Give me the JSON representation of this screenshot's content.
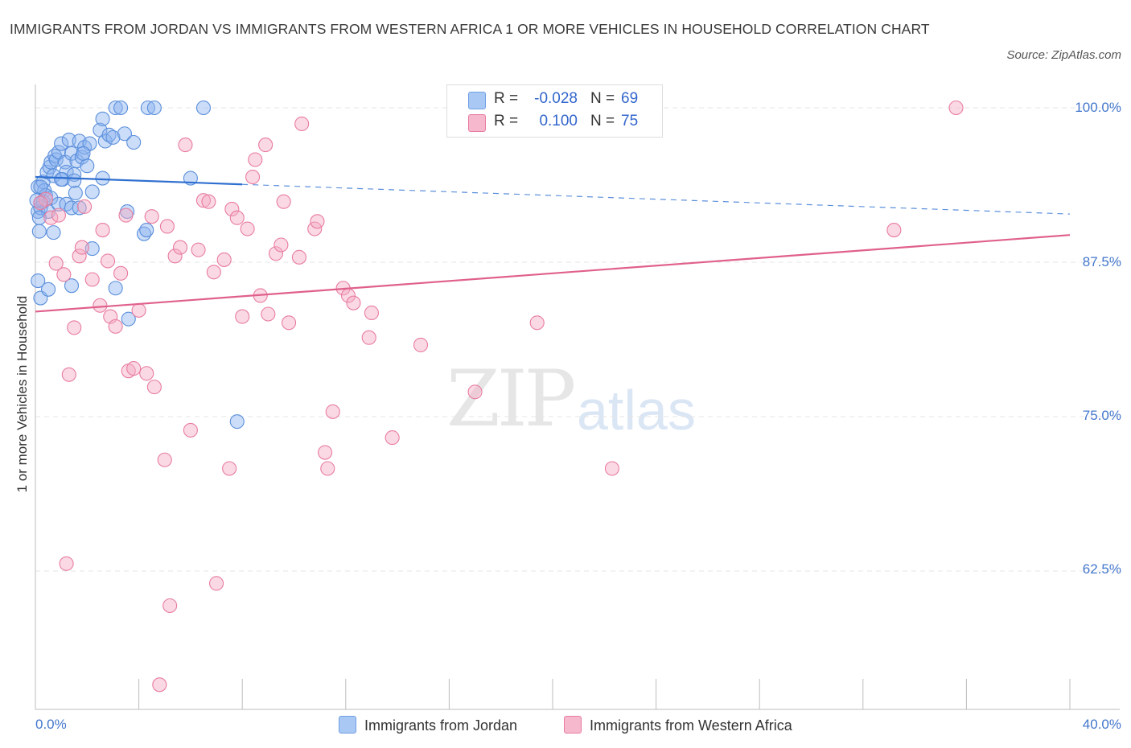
{
  "chart_data": {
    "type": "scatter",
    "title": "IMMIGRANTS FROM JORDAN VS IMMIGRANTS FROM WESTERN AFRICA 1 OR MORE VEHICLES IN HOUSEHOLD CORRELATION CHART",
    "source": "Source: ZipAtlas.com",
    "xlabel": "",
    "ylabel": "1 or more Vehicles in Household",
    "xlim": [
      0,
      40
    ],
    "ylim": [
      52,
      101
    ],
    "x_tick_labels": [
      "0.0%",
      "40.0%"
    ],
    "y_ticks": [
      {
        "value": 100.0,
        "label": "100.0%"
      },
      {
        "value": 87.5,
        "label": "87.5%"
      },
      {
        "value": 75.0,
        "label": "75.0%"
      },
      {
        "value": 62.5,
        "label": "62.5%"
      }
    ],
    "watermark": {
      "zip": "ZIP",
      "atlas": "atlas"
    },
    "legend": {
      "r_label": "R =",
      "n_label": "N =",
      "entries": [
        {
          "name": "Immigrants from Jordan",
          "R": "-0.028",
          "N": "69",
          "color": "#6f9fe6",
          "fill": "#a9c8f3"
        },
        {
          "name": "Immigrants from Western Africa",
          "R": "0.100",
          "N": "75",
          "color": "#e87ca0",
          "fill": "#f6b8cd"
        }
      ]
    },
    "series": [
      {
        "name": "Immigrants from Jordan",
        "color": "#5b8fdb",
        "trend": {
          "x0": 0.0,
          "y0": 94.4,
          "x1": 8.0,
          "y1": 93.8,
          "x_dash_end": 40.0,
          "y_dash_end": 91.4
        },
        "points": [
          [
            0.1,
            93.6
          ],
          [
            0.2,
            92.3
          ],
          [
            0.1,
            91.6
          ],
          [
            0.15,
            90.0
          ],
          [
            0.3,
            94.0
          ],
          [
            0.35,
            93.3
          ],
          [
            0.4,
            92.9
          ],
          [
            0.45,
            94.8
          ],
          [
            0.55,
            95.2
          ],
          [
            0.6,
            95.6
          ],
          [
            0.7,
            94.5
          ],
          [
            0.75,
            96.1
          ],
          [
            0.8,
            95.8
          ],
          [
            0.9,
            96.4
          ],
          [
            1.0,
            97.1
          ],
          [
            1.05,
            94.2
          ],
          [
            1.15,
            95.6
          ],
          [
            1.2,
            94.8
          ],
          [
            1.3,
            97.4
          ],
          [
            1.4,
            96.3
          ],
          [
            1.5,
            94.6
          ],
          [
            1.55,
            93.1
          ],
          [
            1.6,
            95.7
          ],
          [
            1.7,
            97.3
          ],
          [
            1.8,
            96.0
          ],
          [
            1.9,
            96.8
          ],
          [
            2.0,
            95.3
          ],
          [
            2.1,
            97.1
          ],
          [
            2.2,
            93.2
          ],
          [
            2.5,
            98.2
          ],
          [
            2.6,
            99.1
          ],
          [
            2.7,
            97.3
          ],
          [
            2.85,
            97.8
          ],
          [
            3.0,
            97.6
          ],
          [
            3.1,
            100.0
          ],
          [
            3.3,
            100.0
          ],
          [
            3.45,
            97.9
          ],
          [
            3.55,
            91.6
          ],
          [
            3.8,
            97.2
          ],
          [
            4.2,
            89.8
          ],
          [
            4.3,
            90.1
          ],
          [
            4.35,
            100.0
          ],
          [
            4.6,
            100.0
          ],
          [
            6.0,
            94.3
          ],
          [
            6.5,
            100.0
          ],
          [
            0.2,
            91.9
          ],
          [
            0.3,
            92.4
          ],
          [
            0.5,
            91.6
          ],
          [
            0.6,
            92.7
          ],
          [
            0.7,
            89.9
          ],
          [
            0.9,
            92.2
          ],
          [
            1.0,
            94.2
          ],
          [
            1.2,
            92.2
          ],
          [
            1.4,
            91.9
          ],
          [
            1.5,
            94.1
          ],
          [
            1.7,
            91.9
          ],
          [
            1.85,
            96.3
          ],
          [
            2.2,
            88.6
          ],
          [
            2.6,
            94.3
          ],
          [
            3.1,
            85.4
          ],
          [
            3.6,
            82.9
          ],
          [
            7.8,
            74.6
          ],
          [
            0.1,
            86.0
          ],
          [
            0.2,
            84.6
          ],
          [
            0.5,
            85.3
          ],
          [
            1.4,
            85.6
          ],
          [
            0.05,
            92.5
          ],
          [
            0.2,
            93.6
          ],
          [
            0.15,
            91.1
          ]
        ]
      },
      {
        "name": "Immigrants from Western Africa",
        "color": "#e87ca0",
        "trend": {
          "x0": 0.0,
          "y0": 83.5,
          "x1": 40.0,
          "y1": 89.7
        },
        "points": [
          [
            0.4,
            92.6
          ],
          [
            0.6,
            91.1
          ],
          [
            0.8,
            87.4
          ],
          [
            0.9,
            91.3
          ],
          [
            1.1,
            86.5
          ],
          [
            1.3,
            78.4
          ],
          [
            1.5,
            82.2
          ],
          [
            1.7,
            88.0
          ],
          [
            1.8,
            88.7
          ],
          [
            1.9,
            92.0
          ],
          [
            2.2,
            86.1
          ],
          [
            2.5,
            84.0
          ],
          [
            2.6,
            90.1
          ],
          [
            2.8,
            87.6
          ],
          [
            2.9,
            83.1
          ],
          [
            3.1,
            82.3
          ],
          [
            3.3,
            86.6
          ],
          [
            3.5,
            91.3
          ],
          [
            3.6,
            78.7
          ],
          [
            3.8,
            78.9
          ],
          [
            4.0,
            83.6
          ],
          [
            4.3,
            78.5
          ],
          [
            4.5,
            91.2
          ],
          [
            4.6,
            77.4
          ],
          [
            5.0,
            71.5
          ],
          [
            5.1,
            90.4
          ],
          [
            5.4,
            88.0
          ],
          [
            5.6,
            88.7
          ],
          [
            5.8,
            97.0
          ],
          [
            6.0,
            73.9
          ],
          [
            6.3,
            88.5
          ],
          [
            6.5,
            92.5
          ],
          [
            6.7,
            92.4
          ],
          [
            6.9,
            86.7
          ],
          [
            7.0,
            61.5
          ],
          [
            7.3,
            87.7
          ],
          [
            7.5,
            70.8
          ],
          [
            7.6,
            91.8
          ],
          [
            7.8,
            91.1
          ],
          [
            8.0,
            83.1
          ],
          [
            8.2,
            90.2
          ],
          [
            8.4,
            94.4
          ],
          [
            8.5,
            95.8
          ],
          [
            8.7,
            84.8
          ],
          [
            8.9,
            97.0
          ],
          [
            9.0,
            83.3
          ],
          [
            9.3,
            88.2
          ],
          [
            9.5,
            88.9
          ],
          [
            9.6,
            92.4
          ],
          [
            9.8,
            82.6
          ],
          [
            10.2,
            87.9
          ],
          [
            10.3,
            98.7
          ],
          [
            10.8,
            90.2
          ],
          [
            10.9,
            90.8
          ],
          [
            11.2,
            72.1
          ],
          [
            11.3,
            70.8
          ],
          [
            11.5,
            75.4
          ],
          [
            11.9,
            85.4
          ],
          [
            12.1,
            84.8
          ],
          [
            12.3,
            84.2
          ],
          [
            12.9,
            81.4
          ],
          [
            13.0,
            83.4
          ],
          [
            13.8,
            73.3
          ],
          [
            14.9,
            80.8
          ],
          [
            16.3,
            99.2
          ],
          [
            17.0,
            77.0
          ],
          [
            18.6,
            100.0
          ],
          [
            19.4,
            82.6
          ],
          [
            22.3,
            70.8
          ],
          [
            33.2,
            90.1
          ],
          [
            35.6,
            100.0
          ],
          [
            1.2,
            63.1
          ],
          [
            4.8,
            53.3
          ],
          [
            5.2,
            59.7
          ],
          [
            0.2,
            92.3
          ]
        ]
      }
    ]
  }
}
